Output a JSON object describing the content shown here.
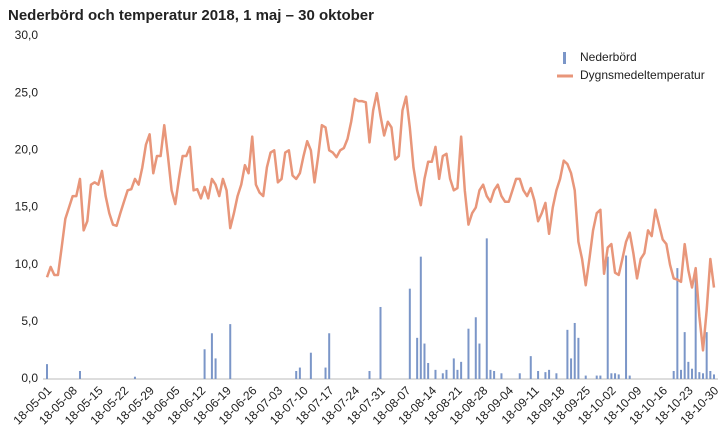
{
  "chart_data": {
    "type": "bar-line",
    "title": "Nederbörd och temperatur 2018, 1 maj – 30 oktober",
    "categories": [
      "18-05-01",
      null,
      null,
      null,
      null,
      null,
      null,
      "18-05-08",
      null,
      null,
      null,
      null,
      null,
      null,
      "18-05-15",
      null,
      null,
      null,
      null,
      null,
      null,
      "18-05-22",
      null,
      null,
      null,
      null,
      null,
      null,
      "18-05-29",
      null,
      null,
      null,
      null,
      null,
      null,
      "18-06-05",
      null,
      null,
      null,
      null,
      null,
      null,
      "18-06-12",
      null,
      null,
      null,
      null,
      null,
      null,
      "18-06-19",
      null,
      null,
      null,
      null,
      null,
      null,
      "18-06-26",
      null,
      null,
      null,
      null,
      null,
      null,
      "18-07-03",
      null,
      null,
      null,
      null,
      null,
      null,
      "18-07-10",
      null,
      null,
      null,
      null,
      null,
      null,
      "18-07-17",
      null,
      null,
      null,
      null,
      null,
      null,
      "18-07-24",
      null,
      null,
      null,
      null,
      null,
      null,
      "18-07-31",
      null,
      null,
      null,
      null,
      null,
      null,
      "18-08-07",
      null,
      null,
      null,
      null,
      null,
      null,
      "18-08-14",
      null,
      null,
      null,
      null,
      null,
      null,
      "18-08-21",
      null,
      null,
      null,
      null,
      null,
      null,
      "18-08-28",
      null,
      null,
      null,
      null,
      null,
      null,
      "18-09-04",
      null,
      null,
      null,
      null,
      null,
      null,
      "18-09-11",
      null,
      null,
      null,
      null,
      null,
      null,
      "18-09-18",
      null,
      null,
      null,
      null,
      null,
      null,
      "18-09-25",
      null,
      null,
      null,
      null,
      null,
      null,
      "18-10-02",
      null,
      null,
      null,
      null,
      null,
      null,
      "18-10-09",
      null,
      null,
      null,
      null,
      null,
      null,
      "18-10-16",
      null,
      null,
      null,
      null,
      null,
      null,
      "18-10-23",
      null,
      null,
      null,
      null,
      null,
      null,
      "18-10-30"
    ],
    "series": [
      {
        "name": "Nederbörd",
        "color": "#7b96c8",
        "kind": "bar",
        "values": [
          1.3,
          0,
          0,
          0,
          0,
          0,
          0,
          0,
          0,
          0.7,
          0,
          0,
          0,
          0,
          0,
          0,
          0,
          0,
          0,
          0,
          0,
          0,
          0,
          0,
          0.2,
          0,
          0,
          0,
          0,
          0,
          0,
          0,
          0,
          0,
          0,
          0,
          0,
          0,
          0,
          0,
          0,
          0,
          0,
          2.6,
          0,
          4.0,
          1.8,
          0,
          0,
          0,
          4.8,
          0,
          0,
          0,
          0,
          0,
          0,
          0,
          0,
          0,
          0,
          0,
          0,
          0,
          0,
          0,
          0,
          0,
          0.7,
          1.0,
          0,
          0,
          2.3,
          0,
          0,
          0,
          1.0,
          4.0,
          0,
          0,
          0,
          0,
          0,
          0,
          0,
          0,
          0,
          0,
          0.7,
          0,
          0,
          6.3,
          0,
          0,
          0,
          0,
          0,
          0,
          0,
          7.9,
          0,
          3.6,
          10.7,
          3.1,
          1.4,
          0,
          0.8,
          0,
          0.5,
          0.8,
          0,
          1.8,
          0.8,
          1.5,
          0,
          4.4,
          0,
          5.4,
          3.1,
          0,
          12.3,
          0.8,
          0.7,
          0,
          0.5,
          0,
          0,
          0,
          0,
          0.5,
          0,
          0,
          2.0,
          0,
          0.7,
          0,
          0.6,
          0.8,
          0,
          0.5,
          0,
          0,
          4.3,
          1.8,
          4.9,
          3.6,
          0,
          0.3,
          0,
          0,
          0.3,
          0.3,
          0,
          10.7,
          0.5,
          0.5,
          0.4,
          0,
          10.8,
          0.3,
          0,
          0,
          0,
          0,
          0,
          0,
          0,
          0,
          0,
          0,
          0,
          0.7,
          9.7,
          0.8,
          4.1,
          1.5,
          0.9,
          9.6,
          0.6,
          0.5,
          4.1,
          0.7,
          0.4
        ]
      },
      {
        "name": "Dygnsmedeltemperatur",
        "color": "#e8967a",
        "kind": "line",
        "values": [
          8.9,
          9.8,
          9.1,
          9.1,
          11.5,
          14,
          15,
          16,
          16,
          17.5,
          13,
          13.8,
          17,
          17.2,
          17,
          18.2,
          16,
          14.5,
          13.5,
          13.4,
          14.5,
          15.5,
          16.5,
          16.6,
          17.5,
          17,
          18.5,
          20.5,
          21.4,
          18,
          19.5,
          19.5,
          22.2,
          19.5,
          16.5,
          15.3,
          17.5,
          19.5,
          19.5,
          20.3,
          16.5,
          16.6,
          15.8,
          16.8,
          15.8,
          17.5,
          17,
          16,
          17.5,
          16.5,
          13.2,
          14.5,
          16,
          17,
          18.7,
          18,
          21.2,
          17,
          16.3,
          16,
          18.5,
          19.8,
          20,
          17.2,
          17.5,
          19.8,
          20,
          17.8,
          17.5,
          18,
          19.5,
          20.8,
          20,
          17.2,
          19.5,
          22.2,
          22,
          20,
          19.8,
          19.4,
          20,
          20.2,
          21,
          22.5,
          24.5,
          24.3,
          24.3,
          24.2,
          20.7,
          23.5,
          25,
          23,
          21.3,
          22.5,
          22,
          19.2,
          19.5,
          23.5,
          24.7,
          22,
          18.5,
          16.5,
          15.2,
          17.5,
          19,
          19,
          20.3,
          17.5,
          19.5,
          19.7,
          17.5,
          16.5,
          16.7,
          21.2,
          16.5,
          13.5,
          14.5,
          15,
          16.5,
          17,
          16,
          15.5,
          16.5,
          17,
          16,
          15.5,
          15.5,
          16.5,
          17.5,
          17.5,
          16.5,
          16,
          16.7,
          15.6,
          13.8,
          14.5,
          15.4,
          12.7,
          15,
          16.5,
          17.5,
          19.1,
          18.8,
          18,
          16.5,
          12,
          10.5,
          8.2,
          10.5,
          13,
          14.5,
          14.8,
          9.2,
          11.5,
          11.8,
          9.3,
          9.1,
          10.5,
          12,
          12.8,
          11,
          8.8,
          10.5,
          11,
          13,
          12.5,
          14.8,
          13.5,
          12.2,
          11.8,
          10,
          8.8,
          8.7,
          8.5,
          11.8,
          9.5,
          8,
          9.7,
          5.5,
          2.5,
          6,
          10.5,
          8
        ]
      }
    ],
    "ylim": [
      0,
      30
    ],
    "yticks": [
      {
        "value": 0,
        "label": "0,0"
      },
      {
        "value": 5,
        "label": "5,0"
      },
      {
        "value": 10,
        "label": "10,0"
      },
      {
        "value": 15,
        "label": "15,0"
      },
      {
        "value": 20,
        "label": "20,0"
      },
      {
        "value": 25,
        "label": "25,0"
      },
      {
        "value": 30,
        "label": "30,0"
      }
    ],
    "legend": "top-right",
    "grid": false
  }
}
